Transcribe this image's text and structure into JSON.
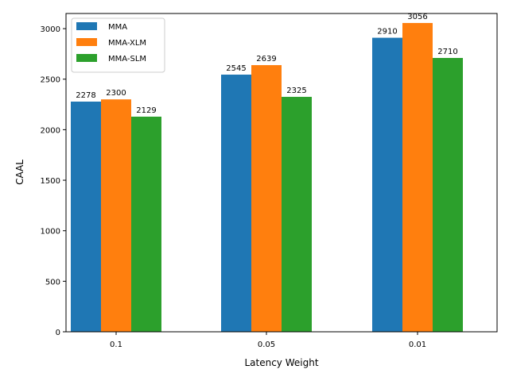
{
  "chart_data": {
    "type": "bar",
    "title": "",
    "xlabel": "Latency Weight",
    "ylabel": "CAAL",
    "categories": [
      "0.1",
      "0.05",
      "0.01"
    ],
    "series": [
      {
        "name": "MMA",
        "color": "#1f77b4",
        "values": [
          2278,
          2545,
          2910
        ]
      },
      {
        "name": "MMA-XLM",
        "color": "#ff7f0e",
        "values": [
          2300,
          2639,
          3056
        ]
      },
      {
        "name": "MMA-SLM",
        "color": "#2ca02c",
        "values": [
          2129,
          2325,
          2710
        ]
      }
    ],
    "ylim": [
      0,
      3150
    ],
    "yticks": [
      0,
      500,
      1000,
      1500,
      2000,
      2500,
      3000
    ],
    "grid": false,
    "legend_position": "top-left"
  }
}
